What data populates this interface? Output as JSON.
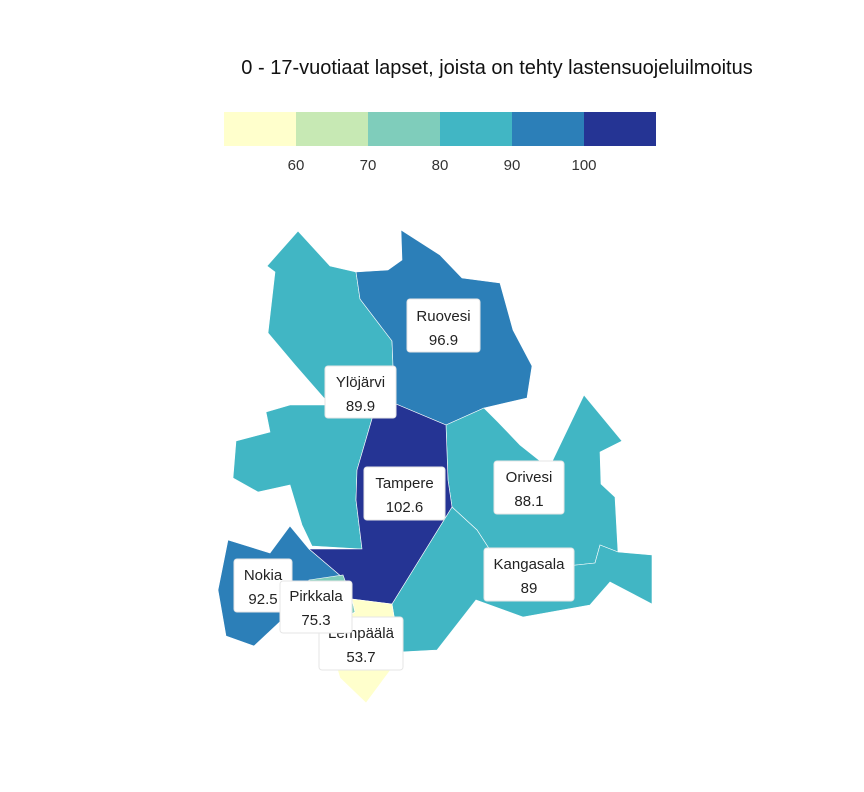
{
  "title": "0 - 17-vuotiaat lapset, joista on tehty lastensuojeluilmoitus",
  "legend": {
    "colors": [
      "#ffffcc",
      "#c7e9b4",
      "#7fcdbb",
      "#41b6c4",
      "#2c7fb8",
      "#253494"
    ],
    "ticks": [
      "60",
      "70",
      "80",
      "90",
      "100"
    ]
  },
  "chart_data": {
    "type": "choropleth",
    "title": "0 - 17-vuotiaat lapset, joista on tehty lastensuojeluilmoitus",
    "color_scale_breaks": [
      60,
      70,
      80,
      90,
      100
    ],
    "regions": [
      {
        "name": "Ruovesi",
        "value": "96.9",
        "color": "#2c7fb8"
      },
      {
        "name": "Ylöjärvi",
        "value": "89.9",
        "color": "#41b6c4"
      },
      {
        "name": "Tampere",
        "value": "102.6",
        "color": "#253494"
      },
      {
        "name": "Orivesi",
        "value": "88.1",
        "color": "#41b6c4"
      },
      {
        "name": "Kangasala",
        "value": "89",
        "color": "#41b6c4"
      },
      {
        "name": "Nokia",
        "value": "92.5",
        "color": "#2c7fb8"
      },
      {
        "name": "Pirkkala",
        "value": "75.3",
        "color": "#7fcdbb"
      },
      {
        "name": "Lempäälä",
        "value": "53.7",
        "color": "#ffffcc"
      }
    ]
  }
}
